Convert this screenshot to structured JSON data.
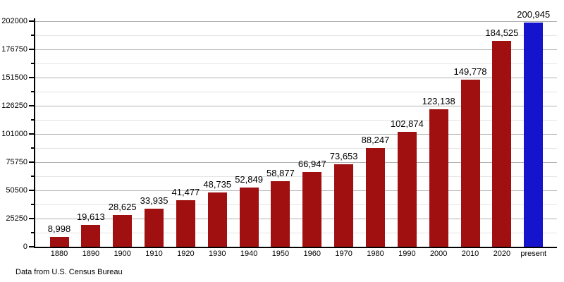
{
  "chart_data": {
    "type": "bar",
    "title": "",
    "xlabel": "",
    "ylabel": "",
    "categories": [
      "1880",
      "1890",
      "1900",
      "1910",
      "1920",
      "1930",
      "1940",
      "1950",
      "1960",
      "1970",
      "1980",
      "1990",
      "2000",
      "2010",
      "2020",
      "present"
    ],
    "values": [
      8998,
      19613,
      28625,
      33935,
      41477,
      48735,
      52849,
      58877,
      66947,
      73653,
      88247,
      102874,
      123138,
      149778,
      184525,
      200945
    ],
    "value_labels": [
      "8,998",
      "19,613",
      "28,625",
      "33,935",
      "41,477",
      "48,735",
      "52,849",
      "58,877",
      "66,947",
      "73,653",
      "88,247",
      "102,874",
      "123,138",
      "149,778",
      "184,525",
      "200,945"
    ],
    "highlight_category": "present",
    "ylim": [
      0,
      202000
    ],
    "y_major_step": 25250,
    "y_minor_step": 12625,
    "y_tick_labels": [
      "0",
      "25250",
      "50500",
      "75750",
      "101000",
      "126250",
      "151500",
      "176750",
      "202000"
    ],
    "grid": true,
    "legend_position": "none",
    "colors": {
      "bar": "#A01010",
      "bar_highlight": "#1414CC",
      "grid_major": "#b3b3b3",
      "grid_minor": "#e4e4e4",
      "axis": "#000000",
      "text": "#000000"
    },
    "source_note": "Data from U.S. Census Bureau"
  }
}
